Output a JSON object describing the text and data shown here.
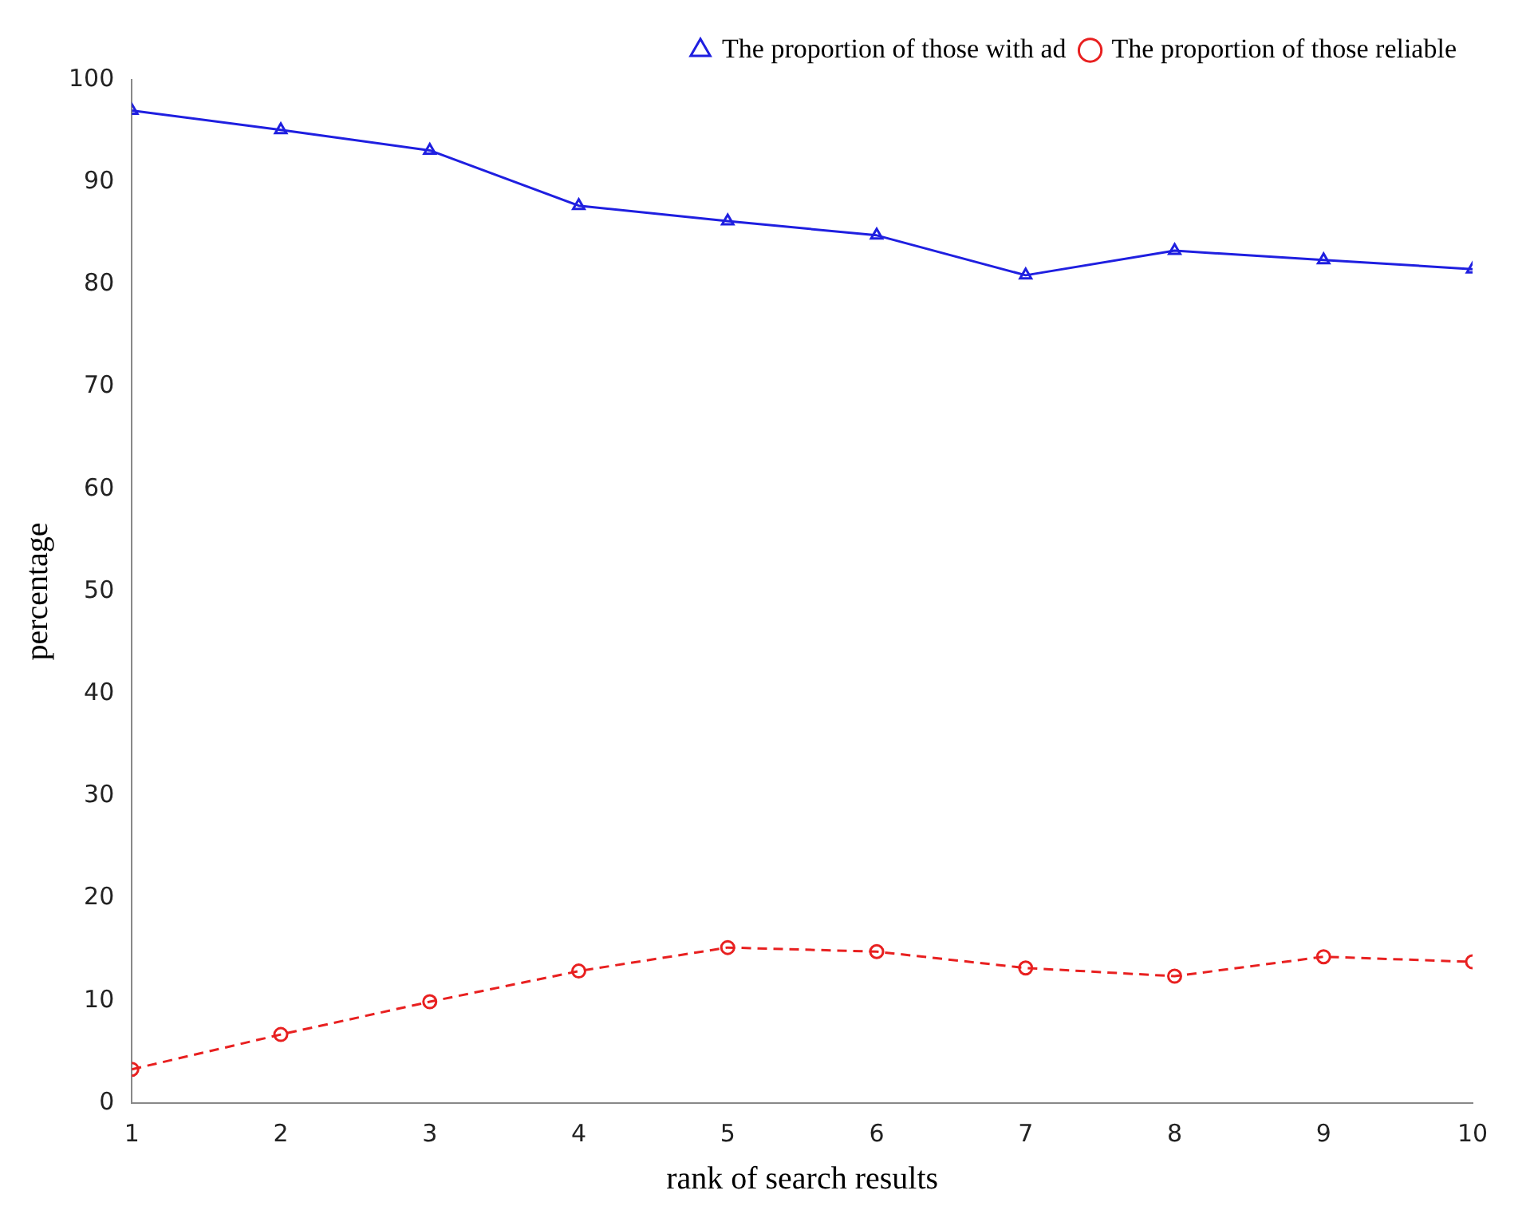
{
  "chart_data": {
    "type": "line",
    "xlabel": "rank of search results",
    "ylabel": "percentage",
    "x": [
      1,
      2,
      3,
      4,
      5,
      6,
      7,
      8,
      9,
      10
    ],
    "xlim": [
      1,
      10
    ],
    "xticks": [
      1,
      2,
      3,
      4,
      5,
      6,
      7,
      8,
      9,
      10
    ],
    "ylim": [
      0,
      100
    ],
    "yticks": [
      0,
      10,
      20,
      30,
      40,
      50,
      60,
      70,
      80,
      90,
      100
    ],
    "grid": false,
    "legend": "top right",
    "series": [
      {
        "name": "The proportion of those with ad",
        "color": "#1f1fe0",
        "marker": "triangle",
        "line_style": "solid",
        "values": [
          97.0,
          95.1,
          93.1,
          87.7,
          86.2,
          84.8,
          80.9,
          83.3,
          82.4,
          81.5
        ]
      },
      {
        "name": "The proportion of those reliable",
        "color": "#e82020",
        "marker": "circle",
        "line_style": "dashed",
        "values": [
          3.3,
          6.7,
          9.9,
          12.9,
          15.2,
          14.8,
          13.2,
          12.4,
          14.3,
          13.8
        ]
      }
    ]
  }
}
